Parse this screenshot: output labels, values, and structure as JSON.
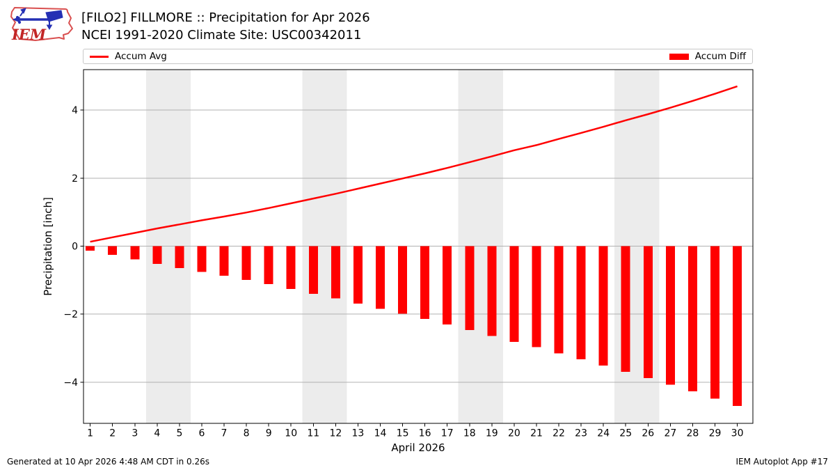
{
  "header": {
    "title_line1": "[FILO2] FILLMORE :: Precipitation for Apr 2026",
    "title_line2": "NCEI 1991-2020 Climate Site: USC00342011",
    "logo_text": "IEM"
  },
  "legend": {
    "avg_label": "Accum Avg",
    "diff_label": "Accum Diff"
  },
  "footer": {
    "generated": "Generated at 10 Apr 2026 4:48 AM CDT in 0.26s",
    "app": "IEM Autoplot App #17"
  },
  "colors": {
    "accent_red": "#ff0000",
    "weekend_band": "#ececec",
    "gridline": "#b0b0b0",
    "axis": "#000000",
    "legend_border": "#c8c8c8",
    "logo_red": "#d94f4f",
    "logo_text_red": "#c22626",
    "logo_blue": "#2430b4"
  },
  "chart_data": {
    "type": "bar",
    "title": "[FILO2] FILLMORE :: Precipitation for Apr 2026",
    "subtitle": "NCEI 1991-2020 Climate Site: USC00342011",
    "xlabel": "April 2026",
    "ylabel": "Precipitation [inch]",
    "x": [
      1,
      2,
      3,
      4,
      5,
      6,
      7,
      8,
      9,
      10,
      11,
      12,
      13,
      14,
      15,
      16,
      17,
      18,
      19,
      20,
      21,
      22,
      23,
      24,
      25,
      26,
      27,
      28,
      29,
      30
    ],
    "series": [
      {
        "name": "Accum Avg",
        "type": "line",
        "values": [
          0.13,
          0.26,
          0.39,
          0.52,
          0.64,
          0.76,
          0.87,
          0.99,
          1.12,
          1.26,
          1.4,
          1.54,
          1.69,
          1.84,
          1.99,
          2.14,
          2.3,
          2.47,
          2.64,
          2.82,
          2.97,
          3.15,
          3.33,
          3.51,
          3.7,
          3.88,
          4.07,
          4.27,
          4.48,
          4.7
        ]
      },
      {
        "name": "Accum Diff",
        "type": "bar",
        "values": [
          -0.13,
          -0.26,
          -0.39,
          -0.52,
          -0.64,
          -0.76,
          -0.87,
          -0.99,
          -1.12,
          -1.26,
          -1.4,
          -1.54,
          -1.69,
          -1.84,
          -1.99,
          -2.14,
          -2.3,
          -2.47,
          -2.64,
          -2.82,
          -2.97,
          -3.15,
          -3.33,
          -3.51,
          -3.7,
          -3.88,
          -4.07,
          -4.27,
          -4.48,
          -4.7
        ]
      }
    ],
    "yticks": [
      -4,
      -2,
      0,
      2,
      4
    ],
    "ytick_labels": [
      "−4",
      "−2",
      "0",
      "2",
      "4"
    ],
    "ylim": [
      -5.21,
      5.19
    ],
    "xlim": [
      0.7,
      30.7
    ],
    "weekend_bands": [
      [
        3.5,
        5.5
      ],
      [
        10.5,
        12.5
      ],
      [
        17.5,
        19.5
      ],
      [
        24.5,
        26.5
      ]
    ],
    "grid": "horizontal",
    "legend_position": "top, expanded full width"
  }
}
